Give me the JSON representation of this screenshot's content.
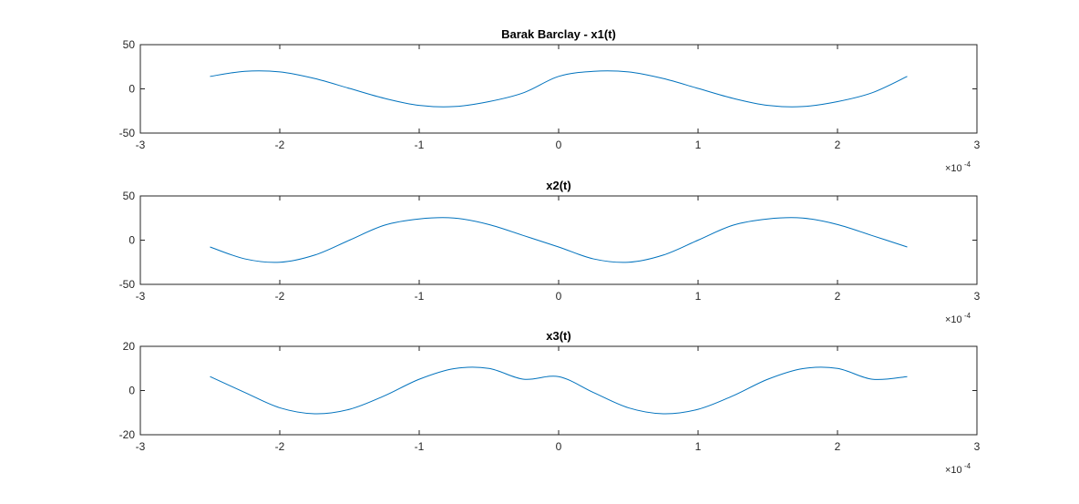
{
  "figure": {
    "background": "#ffffff",
    "axis_color": "#262626",
    "line_color": "#0072BD"
  },
  "chart_data": [
    {
      "type": "line",
      "title": "Barak Barclay - x1(t)",
      "xlabel": "",
      "ylabel": "",
      "xlim": [
        -3,
        3
      ],
      "ylim": [
        -50,
        50
      ],
      "x_tick_labels": [
        "-3",
        "-2",
        "-1",
        "0",
        "1",
        "2",
        "3"
      ],
      "x_ticks": [
        -3,
        -2,
        -1,
        0,
        1,
        2,
        3
      ],
      "y_tick_labels": [
        "-50",
        "0",
        "50"
      ],
      "y_ticks": [
        -50,
        0,
        50
      ],
      "x_exponent_base": "×10",
      "x_exponent_power": "-4",
      "grid": false,
      "series": [
        {
          "x": [
            -2.5,
            -2.25,
            -2.0,
            -1.75,
            -1.5,
            -1.25,
            -1.0,
            -0.75,
            -0.5,
            -0.25,
            0.0,
            0.25,
            0.5,
            0.75,
            1.0,
            1.25,
            1.5,
            1.75,
            2.0,
            2.25,
            2.5
          ],
          "values": [
            14.1,
            19.9,
            19.2,
            11.7,
            0.5,
            -10.7,
            -18.7,
            -20.0,
            -14.4,
            -4.3,
            14.1,
            19.9,
            19.2,
            11.7,
            0.5,
            -10.7,
            -18.7,
            -20.0,
            -14.4,
            -4.3,
            14.1
          ]
        }
      ]
    },
    {
      "type": "line",
      "title": "x2(t)",
      "xlabel": "",
      "ylabel": "",
      "xlim": [
        -3,
        3
      ],
      "ylim": [
        -50,
        50
      ],
      "x_tick_labels": [
        "-3",
        "-2",
        "-1",
        "0",
        "1",
        "2",
        "3"
      ],
      "x_ticks": [
        -3,
        -2,
        -1,
        0,
        1,
        2,
        3
      ],
      "y_tick_labels": [
        "-50",
        "0",
        "50"
      ],
      "y_ticks": [
        -50,
        0,
        50
      ],
      "x_exponent_base": "×10",
      "x_exponent_power": "-4",
      "grid": false,
      "series": [
        {
          "x": [
            -2.5,
            -2.25,
            -2.0,
            -1.75,
            -1.5,
            -1.25,
            -1.0,
            -0.75,
            -0.5,
            -0.25,
            0.0,
            0.25,
            0.5,
            0.75,
            1.0,
            1.25,
            1.5,
            1.75,
            2.0,
            2.25,
            2.5
          ],
          "values": [
            -7.7,
            -21.2,
            -25.0,
            -16.9,
            0.0,
            16.9,
            24.0,
            25.0,
            17.7,
            5.1,
            -7.7,
            -21.2,
            -25.0,
            -16.9,
            0.0,
            16.9,
            24.0,
            25.0,
            17.7,
            5.1,
            -7.7
          ]
        }
      ]
    },
    {
      "type": "line",
      "title": "x3(t)",
      "xlabel": "",
      "ylabel": "",
      "xlim": [
        -3,
        3
      ],
      "ylim": [
        -20,
        20
      ],
      "x_tick_labels": [
        "-3",
        "-2",
        "-1",
        "0",
        "1",
        "2",
        "3"
      ],
      "x_ticks": [
        -3,
        -2,
        -1,
        0,
        1,
        2,
        3
      ],
      "y_tick_labels": [
        "-20",
        "0",
        "20"
      ],
      "y_ticks": [
        -20,
        0,
        20
      ],
      "x_exponent_base": "×10",
      "x_exponent_power": "-4",
      "grid": false,
      "series": [
        {
          "x": [
            -2.5,
            -2.25,
            -2.0,
            -1.75,
            -1.5,
            -1.25,
            -1.0,
            -0.75,
            -0.5,
            -0.25,
            0.0,
            0.25,
            0.5,
            0.75,
            1.0,
            1.25,
            1.5,
            1.75,
            2.0,
            2.25,
            2.5
          ],
          "values": [
            6.3,
            -0.9,
            -7.8,
            -10.5,
            -8.5,
            -2.4,
            5.1,
            9.9,
            10.0,
            5.1,
            6.3,
            -0.9,
            -7.8,
            -10.5,
            -8.5,
            -2.4,
            5.1,
            9.9,
            10.0,
            5.1,
            6.3
          ]
        }
      ]
    }
  ]
}
